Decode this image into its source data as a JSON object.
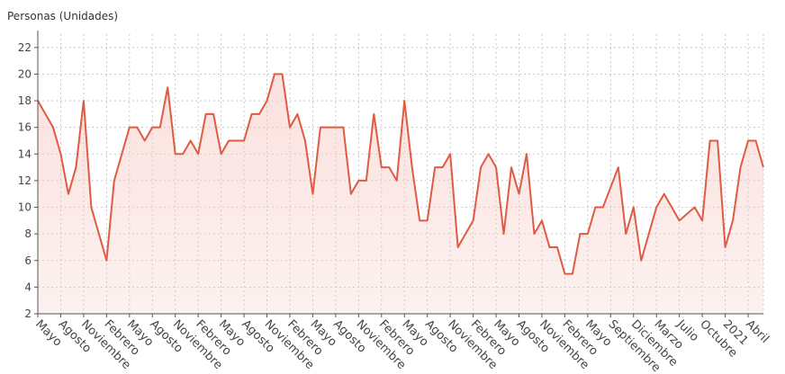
{
  "chart_data": {
    "type": "area",
    "ylabel": "Personas (Unidades)",
    "ylim": [
      2,
      23
    ],
    "yticks": [
      2,
      4,
      6,
      8,
      10,
      12,
      14,
      16,
      18,
      20,
      22
    ],
    "grid": true,
    "colors": {
      "line": "#e05a44",
      "fill": "#f6c9c3",
      "grid": "#bdbdbd",
      "axis": "#555555"
    },
    "x_labels": [
      {
        "i": 0,
        "label": "Mayo"
      },
      {
        "i": 3,
        "label": "Agosto"
      },
      {
        "i": 6,
        "label": "Noviembre"
      },
      {
        "i": 9,
        "label": "Febrero"
      },
      {
        "i": 12,
        "label": "Mayo"
      },
      {
        "i": 15,
        "label": "Agosto"
      },
      {
        "i": 18,
        "label": "Noviembre"
      },
      {
        "i": 21,
        "label": "Febrero"
      },
      {
        "i": 24,
        "label": "Mayo"
      },
      {
        "i": 27,
        "label": "Agosto"
      },
      {
        "i": 30,
        "label": "Noviembre"
      },
      {
        "i": 33,
        "label": "Febrero"
      },
      {
        "i": 36,
        "label": "Mayo"
      },
      {
        "i": 39,
        "label": "Agosto"
      },
      {
        "i": 42,
        "label": "Noviembre"
      },
      {
        "i": 45,
        "label": "Febrero"
      },
      {
        "i": 48,
        "label": "Mayo"
      },
      {
        "i": 51,
        "label": "Agosto"
      },
      {
        "i": 54,
        "label": "Noviembre"
      },
      {
        "i": 57,
        "label": "Febrero"
      },
      {
        "i": 60,
        "label": "Mayo"
      },
      {
        "i": 63,
        "label": "Agosto"
      },
      {
        "i": 66,
        "label": "Noviembre"
      },
      {
        "i": 69,
        "label": "Febrero"
      },
      {
        "i": 72,
        "label": "Mayo"
      },
      {
        "i": 75,
        "label": "Septiembre"
      },
      {
        "i": 78,
        "label": "Diciembre"
      },
      {
        "i": 81,
        "label": "Marzo"
      },
      {
        "i": 84,
        "label": "Julio"
      },
      {
        "i": 87,
        "label": "Octubre"
      },
      {
        "i": 90,
        "label": "2021"
      },
      {
        "i": 93,
        "label": "Abril"
      }
    ],
    "series": [
      {
        "values": [
          18,
          17,
          16,
          14,
          11,
          13,
          18,
          10,
          8,
          6,
          12,
          14,
          16,
          16,
          15,
          16,
          16,
          19,
          14,
          14,
          15,
          14,
          17,
          17,
          14,
          15,
          15,
          15,
          17,
          17,
          18,
          20,
          20,
          16,
          17,
          15,
          11,
          16,
          16,
          16,
          16,
          11,
          12,
          12,
          17,
          13,
          13,
          12,
          18,
          13,
          9,
          9,
          13,
          13,
          14,
          7,
          8,
          9,
          13,
          14,
          13,
          8,
          13,
          11,
          14,
          8,
          9,
          7,
          7,
          5,
          5,
          8,
          8,
          10,
          10,
          11.5,
          13,
          8,
          10,
          6,
          8,
          10,
          11,
          10,
          9,
          9.5,
          10,
          9,
          15,
          15,
          7,
          9,
          13,
          15,
          15,
          13
        ]
      }
    ]
  }
}
